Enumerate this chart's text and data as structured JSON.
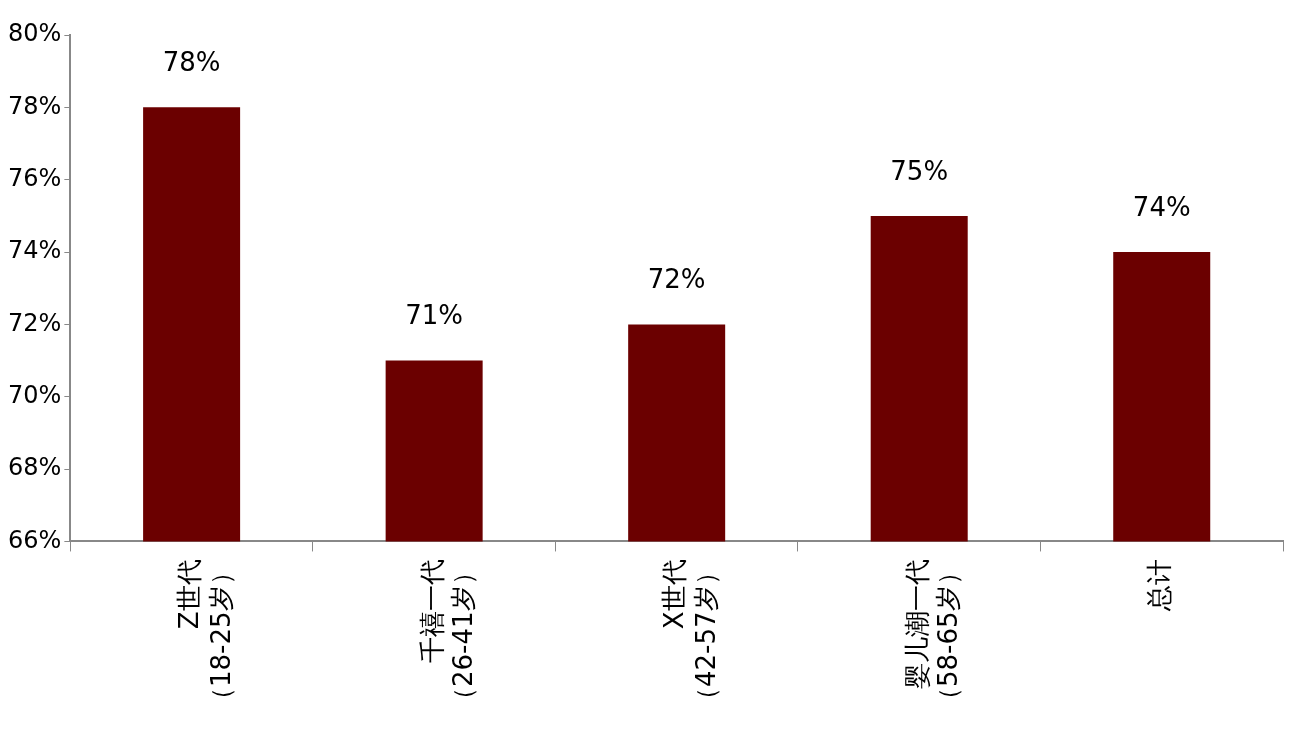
{
  "chart_data": {
    "type": "bar",
    "categories": [
      "Z世代（18-25岁）",
      "千禧一代（26-41岁）",
      "X世代（42-57岁）",
      "婴儿潮一代（58-65岁）",
      "总计"
    ],
    "values": [
      78,
      71,
      72,
      75,
      74
    ],
    "color": "#6b0000",
    "ylim": [
      66,
      80
    ],
    "yticks": [
      {
        "value": 66,
        "label": "66%"
      },
      {
        "value": 68,
        "label": "68%"
      },
      {
        "value": 70,
        "label": "70%"
      },
      {
        "value": 72,
        "label": "72%"
      },
      {
        "value": 74,
        "label": "74%"
      },
      {
        "value": 76,
        "label": "76%"
      },
      {
        "value": 78,
        "label": "78%"
      },
      {
        "value": 80,
        "label": "80%"
      }
    ],
    "data_labels": true,
    "value_labels": [
      "78%",
      "71%",
      "72%",
      "75%",
      "74%"
    ],
    "grid": false,
    "legend": false
  }
}
